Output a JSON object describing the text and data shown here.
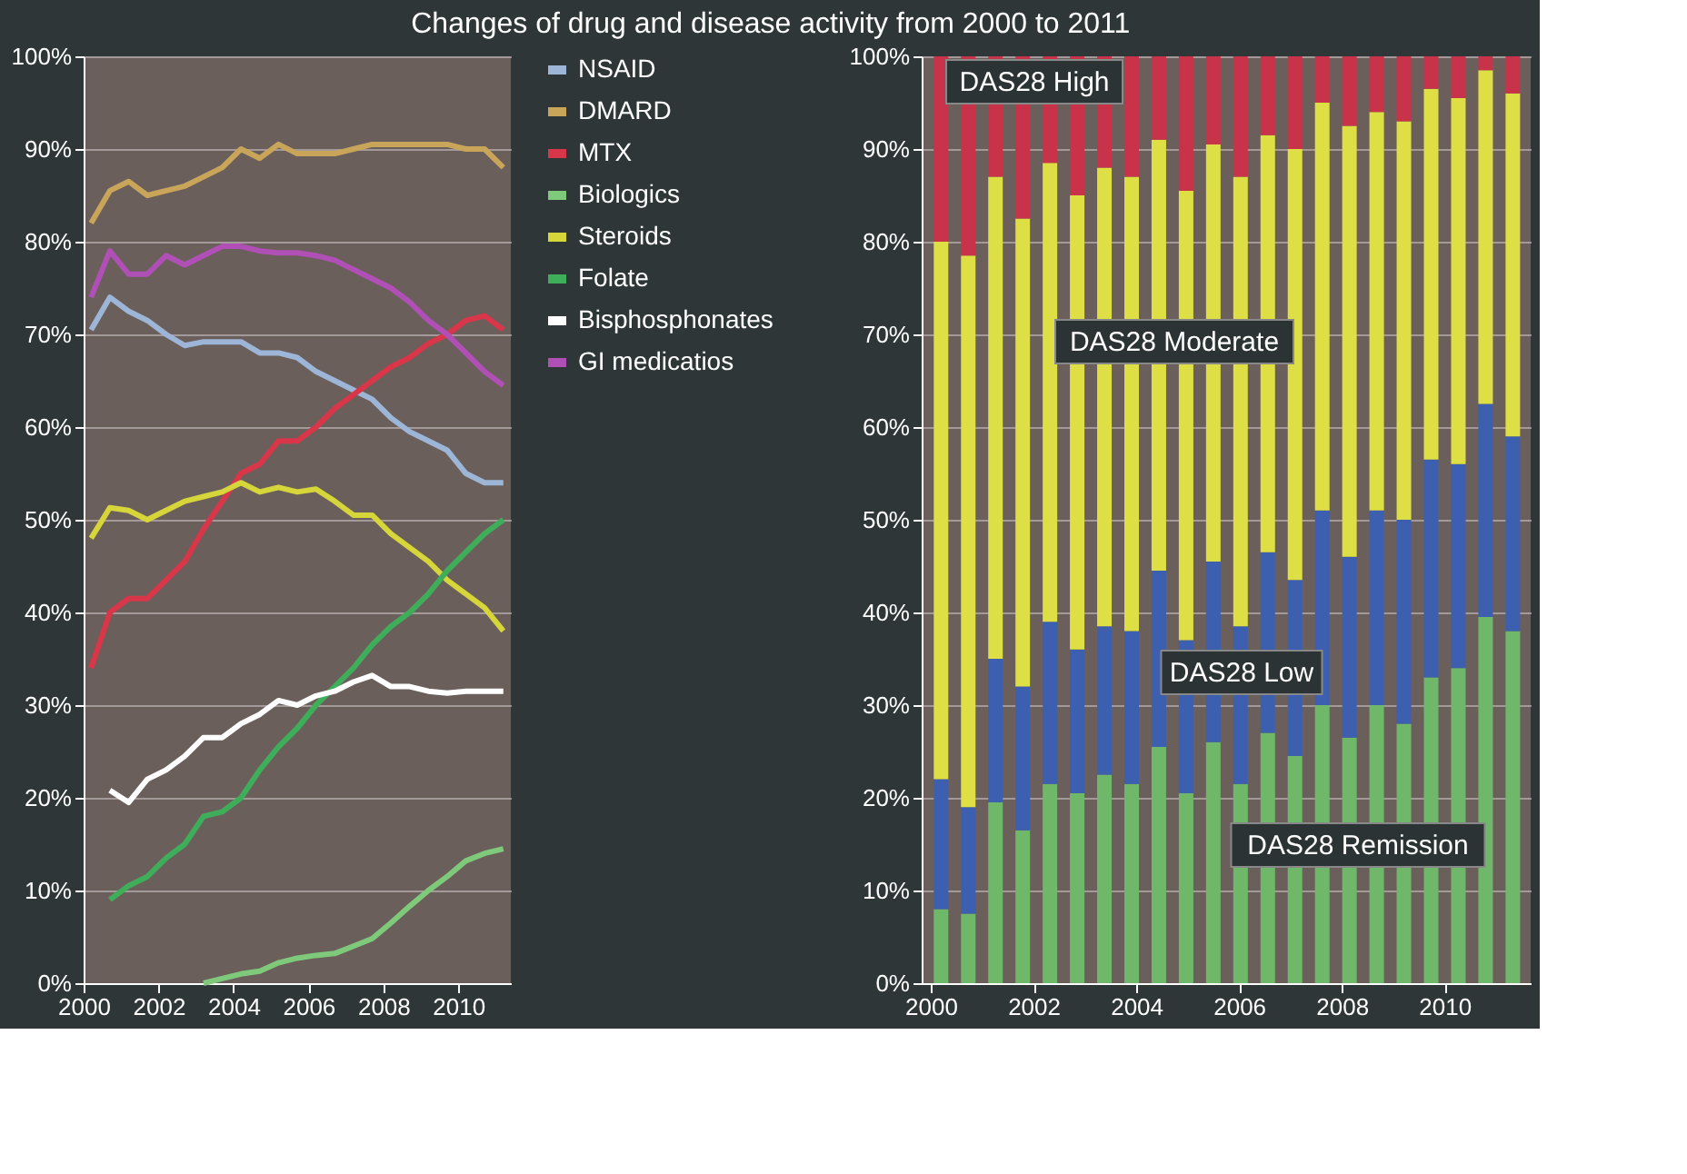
{
  "chart_data": [
    {
      "type": "line",
      "title": "Changes of drug and disease activity from 2000 to 2011",
      "x": [
        2000.2,
        2000.7,
        2001.2,
        2001.7,
        2002.2,
        2002.7,
        2003.2,
        2003.7,
        2004.2,
        2004.7,
        2005.2,
        2005.7,
        2006.2,
        2006.7,
        2007.2,
        2007.7,
        2008.2,
        2008.7,
        2009.2,
        2009.7,
        2010.2,
        2010.7,
        2011.2
      ],
      "series": [
        {
          "name": "NSAID",
          "color": "#9db6d8",
          "values": [
            70.5,
            74,
            72.5,
            71.5,
            70,
            68.8,
            69.2,
            69.2,
            69.2,
            68,
            68,
            67.5,
            66,
            65,
            64,
            63,
            61,
            59.5,
            58.5,
            57.5,
            55,
            54,
            54
          ]
        },
        {
          "name": "DMARD",
          "color": "#c9a55a",
          "values": [
            82,
            85.5,
            86.5,
            85,
            85.5,
            86,
            87,
            88,
            90,
            89,
            90.5,
            89.5,
            89.5,
            89.5,
            90,
            90.5,
            90.5,
            90.5,
            90.5,
            90.5,
            90,
            90,
            88
          ]
        },
        {
          "name": "MTX",
          "color": "#d9364a",
          "values": [
            34,
            40,
            41.5,
            41.5,
            43.5,
            45.5,
            49,
            52,
            55,
            56,
            58.5,
            58.5,
            60,
            62,
            63.5,
            65,
            66.5,
            67.5,
            69,
            70,
            71.5,
            72,
            70.5
          ]
        },
        {
          "name": "Biologics",
          "color": "#7fc97a",
          "values": [
            null,
            null,
            null,
            null,
            null,
            null,
            0,
            0.5,
            1,
            1.3,
            2.2,
            2.7,
            3,
            3.2,
            4,
            4.8,
            6.5,
            8.3,
            10,
            11.5,
            13.2,
            14,
            14.5
          ]
        },
        {
          "name": "Steroids",
          "color": "#d6d63a",
          "values": [
            48,
            51.3,
            51,
            50,
            51,
            52,
            52.5,
            53,
            54,
            53,
            53.5,
            53,
            53.3,
            52,
            50.5,
            50.5,
            48.5,
            47,
            45.5,
            43.5,
            42,
            40.5,
            38
          ]
        },
        {
          "name": "Folate",
          "color": "#3fae5a",
          "values": [
            null,
            9,
            10.5,
            11.5,
            13.5,
            15,
            18,
            18.5,
            20,
            23,
            25.5,
            27.5,
            30,
            32,
            34,
            36.5,
            38.5,
            40,
            42,
            44.5,
            46.5,
            48.5,
            50
          ]
        },
        {
          "name": "Bisphosphonates",
          "color": "#ffffff",
          "values": [
            null,
            20.8,
            19.5,
            22,
            23,
            24.5,
            26.5,
            26.5,
            28,
            29,
            30.5,
            30,
            31,
            31.5,
            32.5,
            33.2,
            32,
            32,
            31.5,
            31.3,
            31.5,
            31.5,
            31.5
          ]
        },
        {
          "name": "GI medicatios",
          "color": "#b04fb5",
          "values": [
            74,
            79,
            76.5,
            76.5,
            78.5,
            77.5,
            78.5,
            79.5,
            79.5,
            79,
            78.8,
            78.8,
            78.5,
            78,
            77,
            76,
            75,
            73.5,
            71.5,
            70,
            68,
            66,
            64.5
          ]
        }
      ],
      "xlim": [
        2000,
        2011.4
      ],
      "xticks": [
        2000,
        2002,
        2004,
        2006,
        2008,
        2010
      ],
      "ylim": [
        0,
        100
      ],
      "yticks": [
        {
          "value": 0,
          "label": "0%"
        },
        {
          "value": 10,
          "label": "10%"
        },
        {
          "value": 20,
          "label": "20%"
        },
        {
          "value": 30,
          "label": "30%"
        },
        {
          "value": 40,
          "label": "40%"
        },
        {
          "value": 50,
          "label": "50%"
        },
        {
          "value": 60,
          "label": "60%"
        },
        {
          "value": 70,
          "label": "70%"
        },
        {
          "value": 80,
          "label": "80%"
        },
        {
          "value": 90,
          "label": "90%"
        },
        {
          "value": 100,
          "label": "100%"
        }
      ],
      "grid": "y",
      "legend": "right"
    },
    {
      "type": "bar",
      "stacked": true,
      "x": [
        2000.2,
        2000.73,
        2001.26,
        2001.79,
        2002.32,
        2002.85,
        2003.38,
        2003.91,
        2004.44,
        2004.97,
        2005.5,
        2006.03,
        2006.56,
        2007.09,
        2007.62,
        2008.15,
        2008.68,
        2009.21,
        2009.74,
        2010.27,
        2010.8,
        2011.33
      ],
      "series": [
        {
          "name": "DAS28 Remission",
          "color": "#6fb86a",
          "values": [
            8,
            7.5,
            19.5,
            16.5,
            21.5,
            20.5,
            22.5,
            21.5,
            25.5,
            20.5,
            26,
            21.5,
            27,
            24.5,
            30,
            26.5,
            30,
            28,
            33,
            34,
            39.5,
            38
          ]
        },
        {
          "name": "DAS28 Low",
          "color": "#3d5fb0",
          "values": [
            14,
            11.5,
            15.5,
            15.5,
            17.5,
            15.5,
            16,
            16.5,
            19,
            16.5,
            19.5,
            17,
            19.5,
            19,
            21,
            19.5,
            21,
            22,
            23.5,
            22,
            23,
            21
          ]
        },
        {
          "name": "DAS28 Moderate",
          "color": "#dede45",
          "values": [
            58,
            59.5,
            52,
            50.5,
            49.5,
            49,
            49.5,
            49,
            46.5,
            48.5,
            45,
            48.5,
            45,
            46.5,
            44,
            46.5,
            43,
            43,
            40,
            39.5,
            36,
            37
          ]
        },
        {
          "name": "DAS28 High",
          "color": "#c8334a",
          "values": [
            20,
            21.5,
            13,
            17.5,
            11.5,
            15,
            12,
            13,
            9,
            14.5,
            9.5,
            13,
            8.5,
            10,
            5,
            7.5,
            6,
            7,
            3.5,
            4.5,
            1.5,
            4
          ]
        }
      ],
      "xlim": [
        2000,
        2011.5
      ],
      "xticks": [
        2000,
        2002,
        2004,
        2006,
        2008,
        2010
      ],
      "ylim": [
        0,
        100
      ],
      "yticks": [
        {
          "value": 0,
          "label": "0%"
        },
        {
          "value": 10,
          "label": "10%"
        },
        {
          "value": 20,
          "label": "20%"
        },
        {
          "value": 30,
          "label": "30%"
        },
        {
          "value": 40,
          "label": "40%"
        },
        {
          "value": 50,
          "label": "50%"
        },
        {
          "value": 60,
          "label": "60%"
        },
        {
          "value": 70,
          "label": "70%"
        },
        {
          "value": 80,
          "label": "80%"
        },
        {
          "value": 90,
          "label": "90%"
        },
        {
          "value": 100,
          "label": "100%"
        }
      ],
      "grid": "y"
    }
  ]
}
